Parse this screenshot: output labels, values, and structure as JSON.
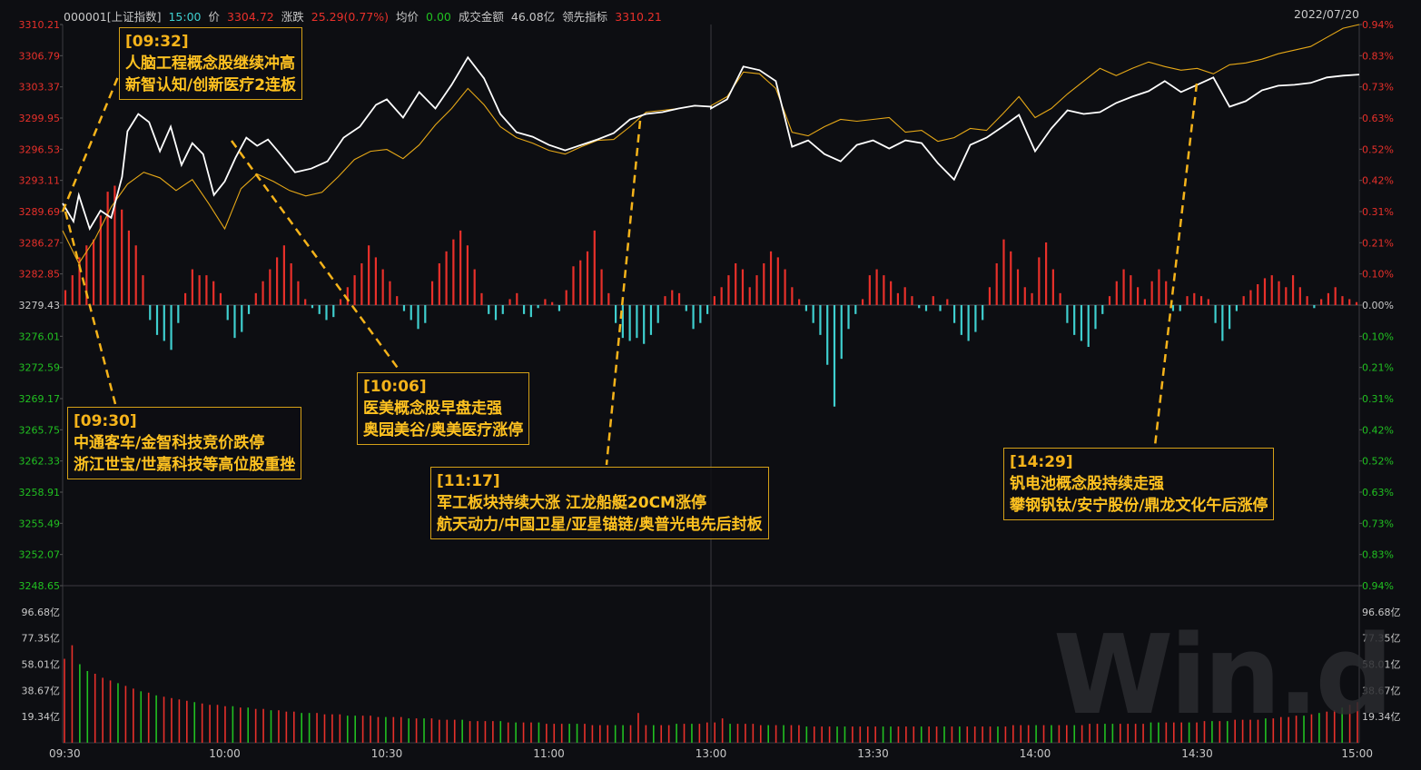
{
  "header": {
    "code": "000001[上证指数]",
    "time": "15:00",
    "price_label": "价",
    "price": "3304.72",
    "change_label": "涨跌",
    "change": "25.29(0.77%)",
    "avg_label": "均价",
    "avg": "0.00",
    "amount_label": "成交金额",
    "amount": "46.08亿",
    "lead_label": "领先指标",
    "lead": "3310.21",
    "date": "2022/07/20"
  },
  "colors": {
    "up": "#e8302a",
    "down": "#3fcfcf",
    "price_line": "#ffffff",
    "lead_line": "#e6a817",
    "annotation": "#f5b31a",
    "vol_up": "#e8302a",
    "vol_down": "#21c021"
  },
  "chart_data": {
    "type": "line",
    "x_ticks": [
      "09:30",
      "10:00",
      "10:30",
      "11:00",
      "13:00",
      "13:30",
      "14:00",
      "14:30",
      "15:00"
    ],
    "price_axis_left": [
      "3310.21",
      "3306.79",
      "3303.37",
      "3299.95",
      "3296.53",
      "3293.11",
      "3289.69",
      "3286.27",
      "3282.85",
      "3279.43",
      "3276.01",
      "3272.59",
      "3269.17",
      "3265.75",
      "3262.33",
      "3258.91",
      "3255.49",
      "3252.07",
      "3248.65"
    ],
    "pct_axis_right": [
      "0.94%",
      "0.83%",
      "0.73%",
      "0.63%",
      "0.52%",
      "0.42%",
      "0.31%",
      "0.21%",
      "0.10%",
      "0.00%",
      "0.10%",
      "0.21%",
      "0.31%",
      "0.42%",
      "0.52%",
      "0.63%",
      "0.73%",
      "0.83%",
      "0.94%"
    ],
    "volume_axis": [
      "96.68亿",
      "77.35亿",
      "58.01亿",
      "38.67亿",
      "19.34亿"
    ],
    "ylim": [
      3248.65,
      3310.21
    ],
    "prev_close": 3279.43,
    "price_series": [
      {
        "t": "09:30",
        "v": 3290.6
      },
      {
        "t": "09:32",
        "v": 3288.6
      },
      {
        "t": "09:33",
        "v": 3291.5
      },
      {
        "t": "09:35",
        "v": 3287.8
      },
      {
        "t": "09:37",
        "v": 3289.8
      },
      {
        "t": "09:39",
        "v": 3289.0
      },
      {
        "t": "09:41",
        "v": 3293.5
      },
      {
        "t": "09:42",
        "v": 3298.5
      },
      {
        "t": "09:44",
        "v": 3300.4
      },
      {
        "t": "09:46",
        "v": 3299.5
      },
      {
        "t": "09:48",
        "v": 3296.3
      },
      {
        "t": "09:50",
        "v": 3299.0
      },
      {
        "t": "09:52",
        "v": 3294.8
      },
      {
        "t": "09:54",
        "v": 3297.2
      },
      {
        "t": "09:56",
        "v": 3296.0
      },
      {
        "t": "09:58",
        "v": 3291.5
      },
      {
        "t": "10:00",
        "v": 3293.0
      },
      {
        "t": "10:02",
        "v": 3295.6
      },
      {
        "t": "10:04",
        "v": 3297.8
      },
      {
        "t": "10:06",
        "v": 3296.9
      },
      {
        "t": "10:08",
        "v": 3297.6
      },
      {
        "t": "10:10",
        "v": 3296.2
      },
      {
        "t": "10:13",
        "v": 3294.0
      },
      {
        "t": "10:16",
        "v": 3294.4
      },
      {
        "t": "10:19",
        "v": 3295.2
      },
      {
        "t": "10:22",
        "v": 3297.8
      },
      {
        "t": "10:25",
        "v": 3299.0
      },
      {
        "t": "10:28",
        "v": 3301.4
      },
      {
        "t": "10:30",
        "v": 3302.0
      },
      {
        "t": "10:33",
        "v": 3300.0
      },
      {
        "t": "10:36",
        "v": 3302.8
      },
      {
        "t": "10:39",
        "v": 3301.0
      },
      {
        "t": "10:42",
        "v": 3303.6
      },
      {
        "t": "10:45",
        "v": 3306.6
      },
      {
        "t": "10:48",
        "v": 3304.3
      },
      {
        "t": "10:51",
        "v": 3300.4
      },
      {
        "t": "10:54",
        "v": 3298.4
      },
      {
        "t": "10:57",
        "v": 3297.9
      },
      {
        "t": "11:00",
        "v": 3297.0
      },
      {
        "t": "11:03",
        "v": 3296.4
      },
      {
        "t": "11:06",
        "v": 3297.0
      },
      {
        "t": "11:09",
        "v": 3297.6
      },
      {
        "t": "11:12",
        "v": 3298.3
      },
      {
        "t": "11:15",
        "v": 3299.8
      },
      {
        "t": "11:18",
        "v": 3300.4
      },
      {
        "t": "11:21",
        "v": 3300.6
      },
      {
        "t": "11:24",
        "v": 3301.0
      },
      {
        "t": "11:27",
        "v": 3301.3
      },
      {
        "t": "11:30",
        "v": 3301.2
      },
      {
        "t": "13:00",
        "v": 3301.0
      },
      {
        "t": "13:03",
        "v": 3302.0
      },
      {
        "t": "13:06",
        "v": 3305.6
      },
      {
        "t": "13:09",
        "v": 3305.2
      },
      {
        "t": "13:12",
        "v": 3304.0
      },
      {
        "t": "13:15",
        "v": 3296.8
      },
      {
        "t": "13:18",
        "v": 3297.5
      },
      {
        "t": "13:21",
        "v": 3296.0
      },
      {
        "t": "13:24",
        "v": 3295.2
      },
      {
        "t": "13:27",
        "v": 3297.0
      },
      {
        "t": "13:30",
        "v": 3297.5
      },
      {
        "t": "13:33",
        "v": 3296.6
      },
      {
        "t": "13:36",
        "v": 3297.5
      },
      {
        "t": "13:39",
        "v": 3297.2
      },
      {
        "t": "13:42",
        "v": 3295.0
      },
      {
        "t": "13:45",
        "v": 3293.2
      },
      {
        "t": "13:48",
        "v": 3297.0
      },
      {
        "t": "13:51",
        "v": 3297.8
      },
      {
        "t": "13:54",
        "v": 3299.0
      },
      {
        "t": "13:57",
        "v": 3300.3
      },
      {
        "t": "14:00",
        "v": 3296.3
      },
      {
        "t": "14:03",
        "v": 3298.8
      },
      {
        "t": "14:06",
        "v": 3300.8
      },
      {
        "t": "14:09",
        "v": 3300.4
      },
      {
        "t": "14:12",
        "v": 3300.6
      },
      {
        "t": "14:15",
        "v": 3301.6
      },
      {
        "t": "14:18",
        "v": 3302.3
      },
      {
        "t": "14:21",
        "v": 3302.9
      },
      {
        "t": "14:24",
        "v": 3304.0
      },
      {
        "t": "14:27",
        "v": 3302.8
      },
      {
        "t": "14:30",
        "v": 3303.6
      },
      {
        "t": "14:33",
        "v": 3304.4
      },
      {
        "t": "14:36",
        "v": 3301.2
      },
      {
        "t": "14:39",
        "v": 3301.8
      },
      {
        "t": "14:42",
        "v": 3303.0
      },
      {
        "t": "14:45",
        "v": 3303.5
      },
      {
        "t": "14:48",
        "v": 3303.6
      },
      {
        "t": "14:51",
        "v": 3303.8
      },
      {
        "t": "14:54",
        "v": 3304.4
      },
      {
        "t": "14:57",
        "v": 3304.6
      },
      {
        "t": "15:00",
        "v": 3304.72
      }
    ],
    "lead_series": [
      {
        "t": "09:30",
        "v": 3287.6
      },
      {
        "t": "09:33",
        "v": 3284.0
      },
      {
        "t": "09:36",
        "v": 3286.7
      },
      {
        "t": "09:39",
        "v": 3290.2
      },
      {
        "t": "09:42",
        "v": 3292.7
      },
      {
        "t": "09:45",
        "v": 3294.0
      },
      {
        "t": "09:48",
        "v": 3293.4
      },
      {
        "t": "09:51",
        "v": 3292.0
      },
      {
        "t": "09:54",
        "v": 3293.2
      },
      {
        "t": "09:57",
        "v": 3290.6
      },
      {
        "t": "10:00",
        "v": 3287.8
      },
      {
        "t": "10:03",
        "v": 3292.2
      },
      {
        "t": "10:06",
        "v": 3293.8
      },
      {
        "t": "10:09",
        "v": 3293.0
      },
      {
        "t": "10:12",
        "v": 3292.0
      },
      {
        "t": "10:15",
        "v": 3291.4
      },
      {
        "t": "10:18",
        "v": 3291.8
      },
      {
        "t": "10:21",
        "v": 3293.5
      },
      {
        "t": "10:24",
        "v": 3295.4
      },
      {
        "t": "10:27",
        "v": 3296.3
      },
      {
        "t": "10:30",
        "v": 3296.5
      },
      {
        "t": "10:33",
        "v": 3295.5
      },
      {
        "t": "10:36",
        "v": 3297.0
      },
      {
        "t": "10:39",
        "v": 3299.2
      },
      {
        "t": "10:42",
        "v": 3301.0
      },
      {
        "t": "10:45",
        "v": 3303.2
      },
      {
        "t": "10:48",
        "v": 3301.4
      },
      {
        "t": "10:51",
        "v": 3299.0
      },
      {
        "t": "10:54",
        "v": 3297.8
      },
      {
        "t": "10:57",
        "v": 3297.2
      },
      {
        "t": "11:00",
        "v": 3296.4
      },
      {
        "t": "11:03",
        "v": 3296.0
      },
      {
        "t": "11:06",
        "v": 3296.8
      },
      {
        "t": "11:09",
        "v": 3297.5
      },
      {
        "t": "11:12",
        "v": 3297.6
      },
      {
        "t": "11:15",
        "v": 3299.0
      },
      {
        "t": "11:18",
        "v": 3300.6
      },
      {
        "t": "11:21",
        "v": 3300.8
      },
      {
        "t": "11:24",
        "v": 3301.0
      },
      {
        "t": "11:27",
        "v": 3301.3
      },
      {
        "t": "11:30",
        "v": 3301.2
      },
      {
        "t": "13:00",
        "v": 3301.3
      },
      {
        "t": "13:03",
        "v": 3302.3
      },
      {
        "t": "13:06",
        "v": 3305.0
      },
      {
        "t": "13:09",
        "v": 3304.8
      },
      {
        "t": "13:12",
        "v": 3303.2
      },
      {
        "t": "13:15",
        "v": 3298.4
      },
      {
        "t": "13:18",
        "v": 3298.0
      },
      {
        "t": "13:21",
        "v": 3299.0
      },
      {
        "t": "13:24",
        "v": 3299.8
      },
      {
        "t": "13:27",
        "v": 3299.6
      },
      {
        "t": "13:30",
        "v": 3299.8
      },
      {
        "t": "13:33",
        "v": 3300.0
      },
      {
        "t": "13:36",
        "v": 3298.4
      },
      {
        "t": "13:39",
        "v": 3298.6
      },
      {
        "t": "13:42",
        "v": 3297.4
      },
      {
        "t": "13:45",
        "v": 3297.8
      },
      {
        "t": "13:48",
        "v": 3298.8
      },
      {
        "t": "13:51",
        "v": 3298.6
      },
      {
        "t": "13:54",
        "v": 3300.4
      },
      {
        "t": "13:57",
        "v": 3302.3
      },
      {
        "t": "14:00",
        "v": 3300.0
      },
      {
        "t": "14:03",
        "v": 3301.0
      },
      {
        "t": "14:06",
        "v": 3302.6
      },
      {
        "t": "14:09",
        "v": 3304.0
      },
      {
        "t": "14:12",
        "v": 3305.4
      },
      {
        "t": "14:15",
        "v": 3304.6
      },
      {
        "t": "14:18",
        "v": 3305.4
      },
      {
        "t": "14:21",
        "v": 3306.1
      },
      {
        "t": "14:24",
        "v": 3305.6
      },
      {
        "t": "14:27",
        "v": 3305.2
      },
      {
        "t": "14:30",
        "v": 3305.4
      },
      {
        "t": "14:33",
        "v": 3304.8
      },
      {
        "t": "14:36",
        "v": 3305.8
      },
      {
        "t": "14:39",
        "v": 3306.0
      },
      {
        "t": "14:42",
        "v": 3306.4
      },
      {
        "t": "14:45",
        "v": 3307.0
      },
      {
        "t": "14:48",
        "v": 3307.4
      },
      {
        "t": "14:51",
        "v": 3307.8
      },
      {
        "t": "14:54",
        "v": 3308.8
      },
      {
        "t": "14:57",
        "v": 3309.8
      },
      {
        "t": "15:00",
        "v": 3310.21
      }
    ],
    "strength_bars_pct": [
      0.05,
      0.1,
      0.16,
      0.2,
      0.22,
      0.3,
      0.38,
      0.4,
      0.32,
      0.25,
      0.2,
      0.1,
      -0.05,
      -0.1,
      -0.12,
      -0.15,
      -0.06,
      0.04,
      0.12,
      0.1,
      0.1,
      0.08,
      0.04,
      -0.05,
      -0.11,
      -0.09,
      -0.03,
      0.04,
      0.08,
      0.12,
      0.16,
      0.2,
      0.14,
      0.08,
      0.02,
      -0.01,
      -0.03,
      -0.05,
      -0.04,
      0.02,
      0.06,
      0.1,
      0.14,
      0.2,
      0.16,
      0.12,
      0.08,
      0.03,
      -0.02,
      -0.05,
      -0.08,
      -0.06,
      0.08,
      0.14,
      0.18,
      0.22,
      0.25,
      0.2,
      0.12,
      0.04,
      -0.03,
      -0.05,
      -0.03,
      0.02,
      0.04,
      -0.03,
      -0.04,
      -0.01,
      0.02,
      0.01,
      -0.02,
      0.05,
      0.13,
      0.15,
      0.18,
      0.25,
      0.12,
      0.04,
      -0.06,
      -0.11,
      -0.12,
      -0.11,
      -0.13,
      -0.1,
      -0.06,
      0.03,
      0.05,
      0.04,
      -0.02,
      -0.08,
      -0.06,
      -0.03,
      0.03,
      0.06,
      0.1,
      0.14,
      0.12,
      0.06,
      0.1,
      0.14,
      0.18,
      0.16,
      0.12,
      0.06,
      0.02,
      -0.02,
      -0.06,
      -0.1,
      -0.2,
      -0.34,
      -0.18,
      -0.08,
      -0.03,
      0.02,
      0.1,
      0.12,
      0.1,
      0.08,
      0.04,
      0.06,
      0.03,
      -0.01,
      -0.02,
      0.03,
      -0.02,
      0.02,
      -0.06,
      -0.1,
      -0.12,
      -0.09,
      -0.05,
      0.06,
      0.14,
      0.22,
      0.18,
      0.12,
      0.06,
      0.04,
      0.16,
      0.21,
      0.12,
      0.04,
      -0.06,
      -0.1,
      -0.12,
      -0.14,
      -0.08,
      -0.03,
      0.03,
      0.08,
      0.12,
      0.1,
      0.06,
      0.02,
      0.08,
      0.12,
      0.08,
      -0.02,
      -0.02,
      0.03,
      0.04,
      0.03,
      0.02,
      -0.06,
      -0.12,
      -0.08,
      -0.02,
      0.03,
      0.05,
      0.07,
      0.09,
      0.1,
      0.08,
      0.06,
      0.1,
      0.06,
      0.03,
      -0.01,
      0.02,
      0.04,
      0.06,
      0.03,
      0.02,
      0.01
    ],
    "volume_bars_yi": [
      62,
      72,
      58,
      53,
      51,
      48,
      46,
      44,
      42,
      40,
      38,
      37,
      35,
      34,
      33,
      32,
      31,
      30,
      29,
      28,
      28,
      27,
      27,
      26,
      26,
      25,
      25,
      24,
      24,
      23,
      23,
      22,
      22,
      22,
      21,
      21,
      21,
      20,
      20,
      20,
      20,
      19,
      19,
      19,
      19,
      18,
      18,
      18,
      18,
      17,
      17,
      17,
      17,
      16,
      16,
      16,
      16,
      16,
      15,
      15,
      15,
      15,
      15,
      14,
      14,
      14,
      14,
      14,
      14,
      13,
      13,
      13,
      13,
      13,
      13,
      22,
      13,
      13,
      13,
      13,
      14,
      14,
      14,
      14,
      15,
      15,
      18,
      14,
      14,
      14,
      14,
      13,
      13,
      13,
      13,
      13,
      13,
      12,
      12,
      12,
      12,
      12,
      12,
      12,
      12,
      12,
      12,
      12,
      12,
      12,
      12,
      12,
      12,
      12,
      12,
      12,
      12,
      12,
      12,
      12,
      12,
      12,
      12,
      12,
      13,
      13,
      13,
      13,
      13,
      13,
      13,
      13,
      13,
      13,
      14,
      14,
      14,
      14,
      14,
      14,
      14,
      14,
      15,
      15,
      15,
      15,
      15,
      15,
      15,
      16,
      16,
      16,
      16,
      17,
      17,
      17,
      17,
      18,
      18,
      19,
      19,
      20,
      20,
      21,
      22,
      23,
      24,
      26,
      28,
      30
    ]
  },
  "annotations": [
    {
      "time": "[09:32]",
      "line1": "人脑工程概念股继续冲高",
      "line2": "新智认知/创新医疗2连板"
    },
    {
      "time": "[09:30]",
      "line1": "中通客车/金智科技竞价跌停",
      "line2": "浙江世宝/世嘉科技等高位股重挫"
    },
    {
      "time": "[10:06]",
      "line1": "医美概念股早盘走强",
      "line2": "奥园美谷/奥美医疗涨停"
    },
    {
      "time": "[11:17]",
      "line1": "军工板块持续大涨 江龙船艇20CM涨停",
      "line2": "航天动力/中国卫星/亚星锚链/奥普光电先后封板"
    },
    {
      "time": "[14:29]",
      "line1": "钒电池概念股持续走强",
      "line2": "攀钢钒钛/安宁股份/鼎龙文化午后涨停"
    }
  ],
  "watermark": "Win.d"
}
